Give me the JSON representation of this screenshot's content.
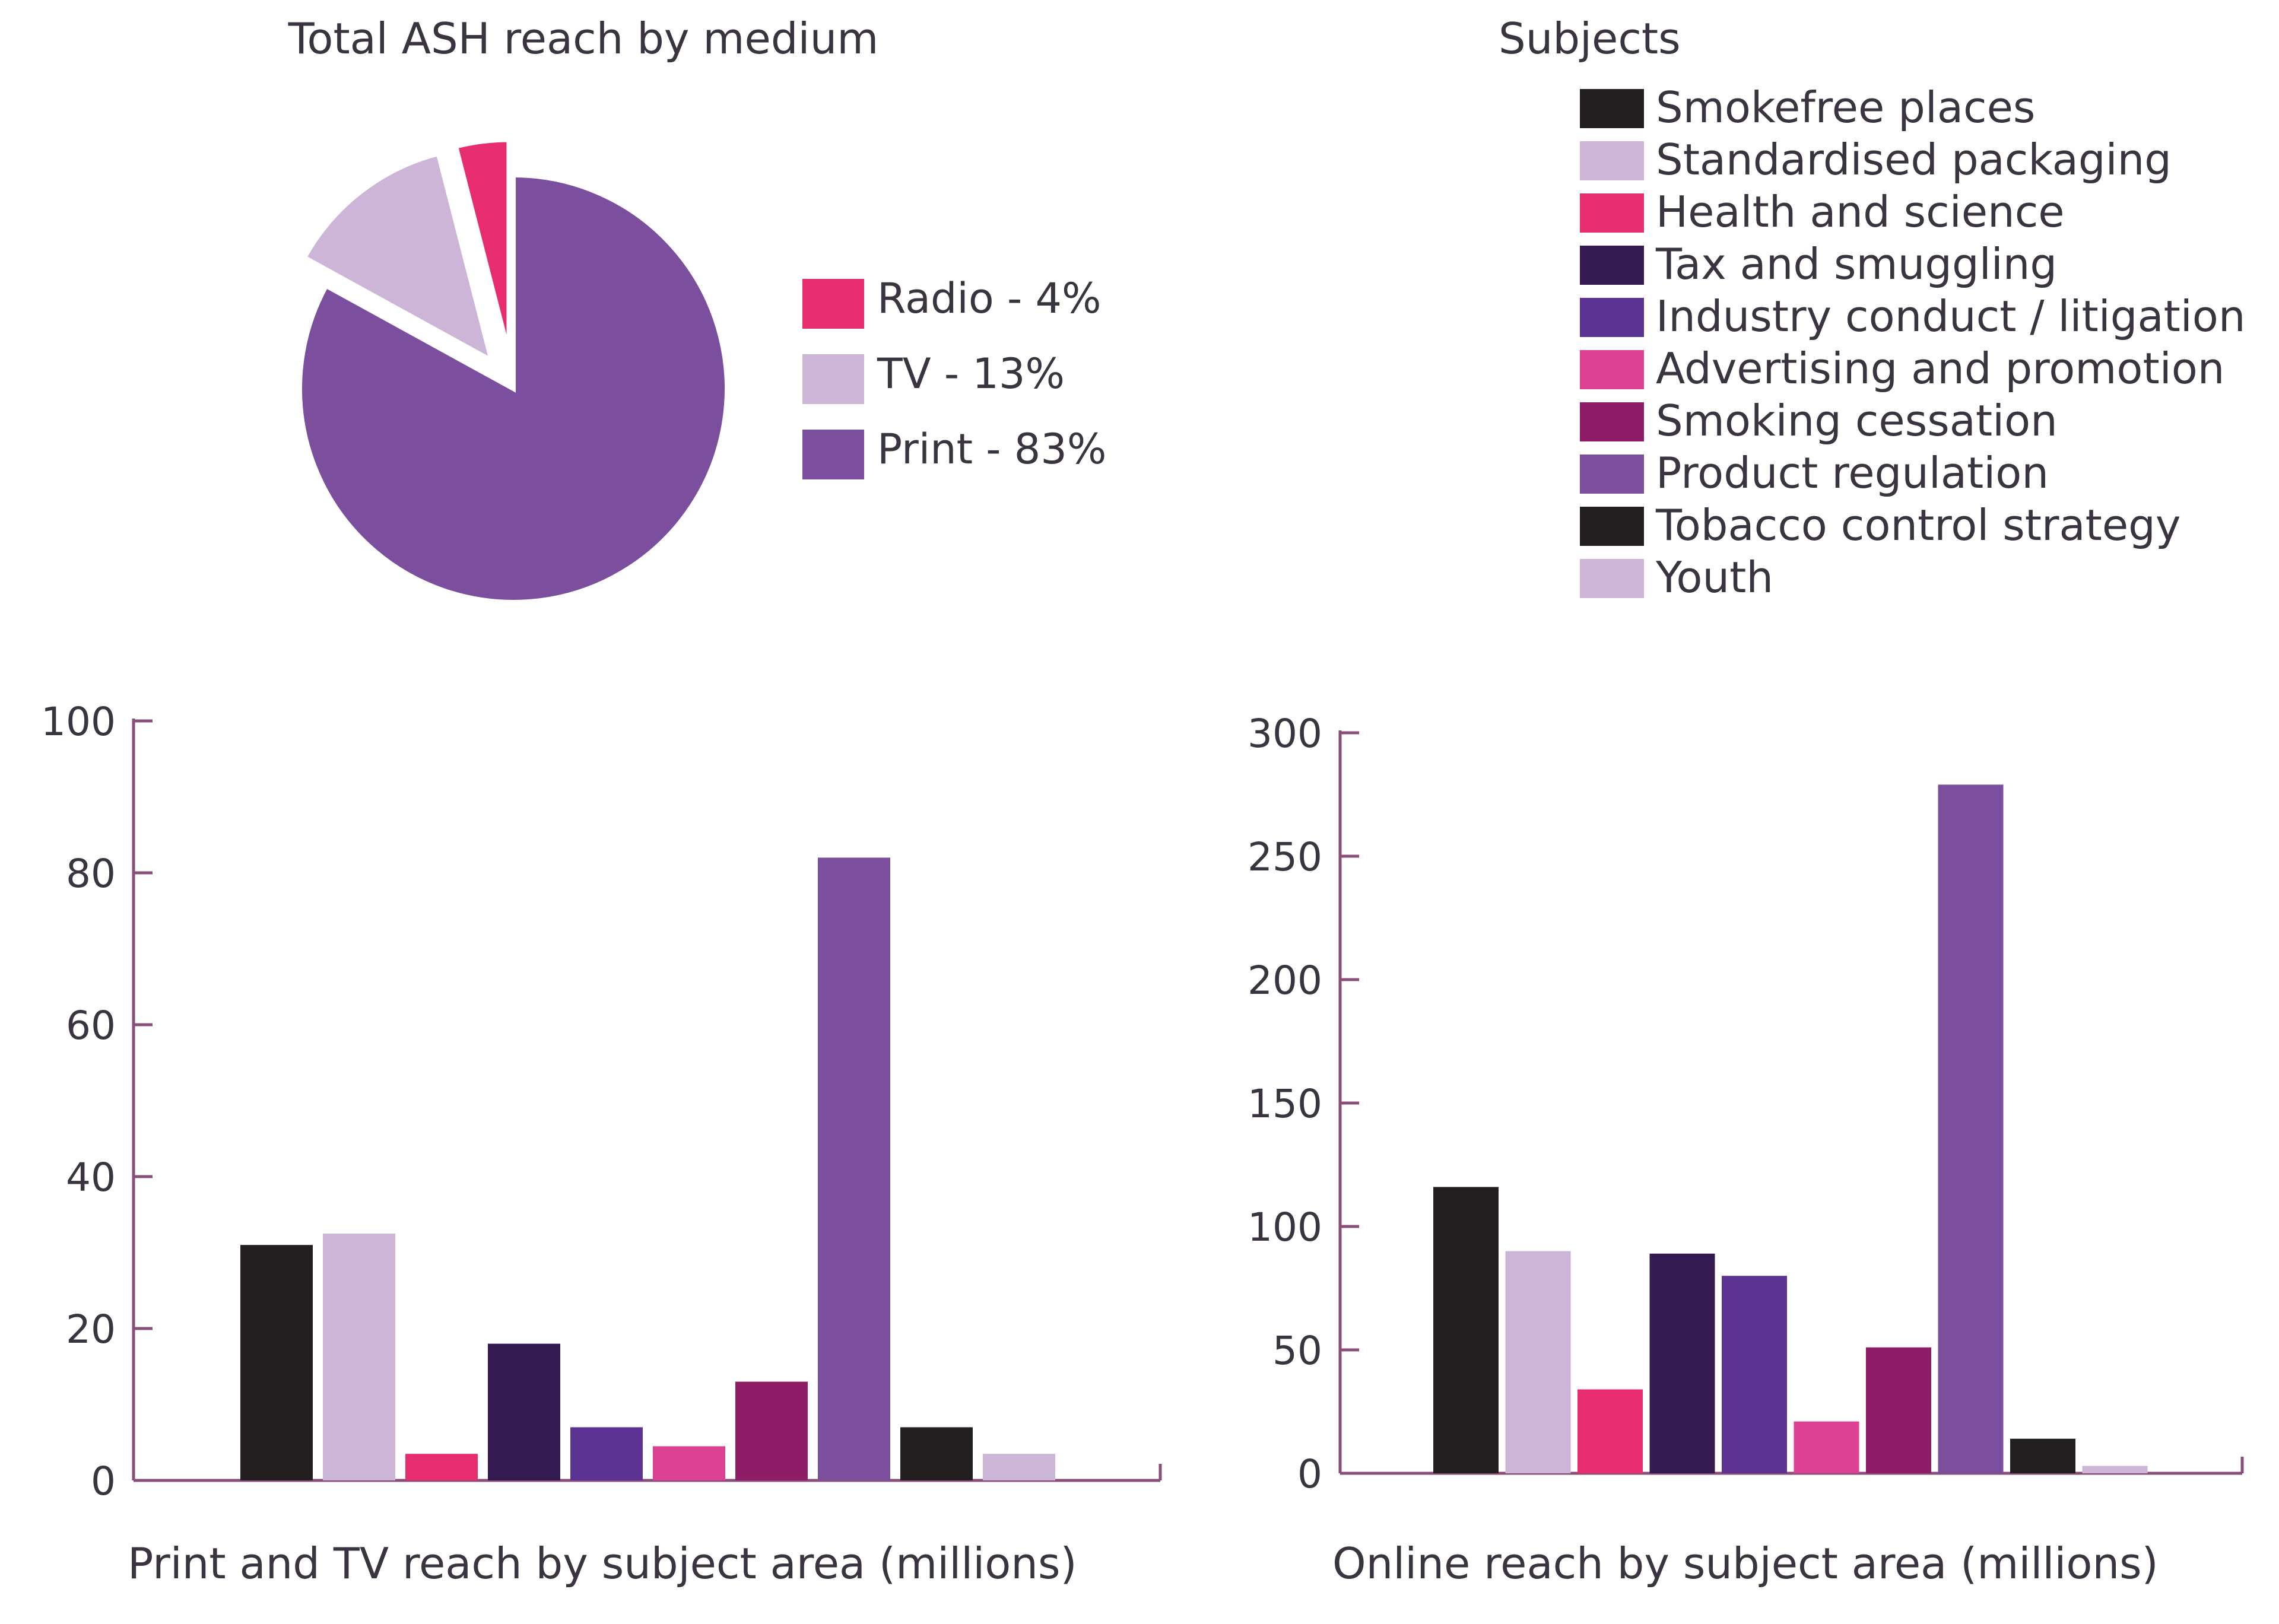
{
  "colors": {
    "smokefree": "#231f20",
    "standardised": "#cdb5d8",
    "health": "#e72c6f",
    "tax": "#331b51",
    "industry": "#5c3392",
    "advertising": "#dc4194",
    "cessation": "#8f1c66",
    "product": "#7b4f9d",
    "tobacco": "#231f20",
    "youth": "#cdb5d8",
    "axis": "#8a4f78",
    "text": "#3a3340"
  },
  "legend": {
    "title": "Subjects",
    "items": [
      {
        "label": "Smokefree places",
        "color": "#231f20"
      },
      {
        "label": "Standardised packaging",
        "color": "#cdb5d8"
      },
      {
        "label": "Health and science",
        "color": "#e72c6f"
      },
      {
        "label": "Tax and smuggling",
        "color": "#331b51"
      },
      {
        "label": "Industry conduct / litigation",
        "color": "#5c3392"
      },
      {
        "label": "Advertising and promotion",
        "color": "#dc4194"
      },
      {
        "label": "Smoking cessation",
        "color": "#8f1c66"
      },
      {
        "label": "Product regulation",
        "color": "#7b4f9d"
      },
      {
        "label": "Tobacco control strategy",
        "color": "#231f20"
      },
      {
        "label": "Youth",
        "color": "#cdb5d8"
      }
    ]
  },
  "chart_data": [
    {
      "type": "pie",
      "title": "Total ASH reach by medium",
      "slices": [
        {
          "label": "Radio - 4%",
          "name": "Radio",
          "value": 4,
          "color": "#e72c6f",
          "exploded": true
        },
        {
          "label": "TV - 13%",
          "name": "TV",
          "value": 13,
          "color": "#cdb5d8",
          "exploded": true
        },
        {
          "label": "Print - 83%",
          "name": "Print",
          "value": 83,
          "color": "#7b4f9d",
          "exploded": false
        }
      ],
      "legend_position": "right"
    },
    {
      "type": "bar",
      "title": "Print and TV reach by subject area (millions)",
      "categories": [
        "Smokefree places",
        "Standardised packaging",
        "Health and science",
        "Tax and smuggling",
        "Industry conduct / litigation",
        "Advertising and promotion",
        "Smoking cessation",
        "Product regulation",
        "Tobacco control strategy",
        "Youth"
      ],
      "values": [
        31,
        32.5,
        3.5,
        18,
        7,
        4.5,
        13,
        82,
        7,
        3.5
      ],
      "ylim": [
        0,
        100
      ],
      "yticks": [
        0,
        20,
        40,
        60,
        80,
        100
      ],
      "ytick_labels": [
        "0",
        "20",
        "40",
        "60",
        "80",
        "100"
      ],
      "grid": false
    },
    {
      "type": "bar",
      "title": "Online reach by subject area (millions)",
      "categories": [
        "Smokefree places",
        "Standardised packaging",
        "Health and science",
        "Tax and smuggling",
        "Industry conduct / litigation",
        "Advertising and promotion",
        "Smoking cessation",
        "Product regulation",
        "Tobacco control strategy",
        "Youth"
      ],
      "values": [
        116,
        90,
        34,
        89,
        80,
        21,
        51,
        279,
        14,
        3
      ],
      "ylim": [
        0,
        300
      ],
      "yticks": [
        0,
        50,
        100,
        150,
        200,
        250,
        300
      ],
      "ytick_labels": [
        "0",
        "50",
        "100",
        "150",
        "200",
        "250",
        "300"
      ],
      "grid": false
    }
  ]
}
